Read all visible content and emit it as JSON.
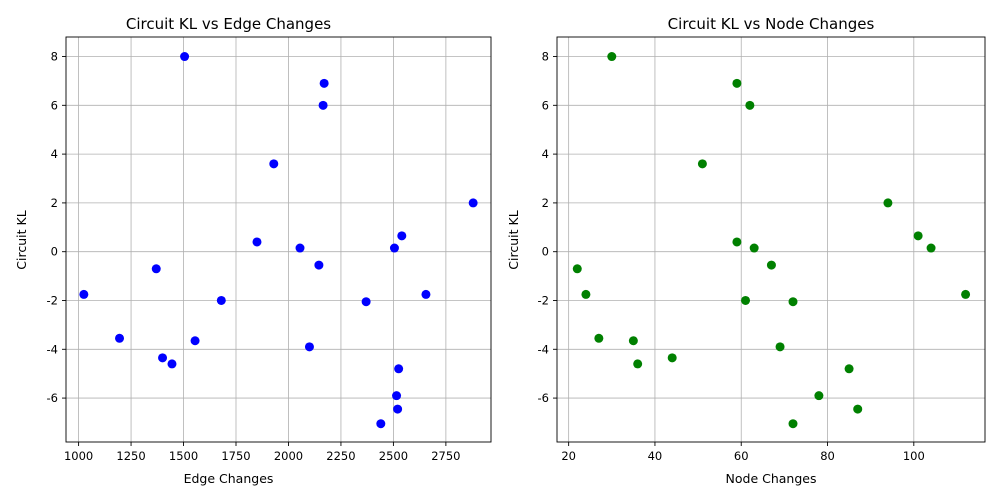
{
  "chart_data": [
    {
      "type": "scatter",
      "title": "Circuit KL vs Edge Changes",
      "xlabel": "Edge Changes",
      "ylabel": "Circuit KL",
      "xlim": [
        940,
        2965
      ],
      "ylim": [
        -7.8,
        8.8
      ],
      "xticks": [
        1000,
        1250,
        1500,
        1750,
        2000,
        2250,
        2500,
        2750
      ],
      "yticks": [
        -6,
        -4,
        -2,
        0,
        2,
        4,
        6,
        8
      ],
      "grid": true,
      "color": "#0000ff",
      "points": [
        {
          "x": 1505,
          "y": 8.0
        },
        {
          "x": 2170,
          "y": 6.9
        },
        {
          "x": 2165,
          "y": 6.0
        },
        {
          "x": 1930,
          "y": 3.6
        },
        {
          "x": 2880,
          "y": 2.0
        },
        {
          "x": 1850,
          "y": 0.4
        },
        {
          "x": 2540,
          "y": 0.65
        },
        {
          "x": 2055,
          "y": 0.15
        },
        {
          "x": 2505,
          "y": 0.15
        },
        {
          "x": 2145,
          "y": -0.55
        },
        {
          "x": 1370,
          "y": -0.7
        },
        {
          "x": 1025,
          "y": -1.75
        },
        {
          "x": 2655,
          "y": -1.75
        },
        {
          "x": 1680,
          "y": -2.0
        },
        {
          "x": 2370,
          "y": -2.05
        },
        {
          "x": 1195,
          "y": -3.55
        },
        {
          "x": 1555,
          "y": -3.65
        },
        {
          "x": 2100,
          "y": -3.9
        },
        {
          "x": 1400,
          "y": -4.35
        },
        {
          "x": 1445,
          "y": -4.6
        },
        {
          "x": 2525,
          "y": -4.8
        },
        {
          "x": 2515,
          "y": -5.9
        },
        {
          "x": 2520,
          "y": -6.45
        },
        {
          "x": 2440,
          "y": -7.05
        }
      ]
    },
    {
      "type": "scatter",
      "title": "Circuit KL vs Node Changes",
      "xlabel": "Node Changes",
      "ylabel": "Circuit KL",
      "xlim": [
        17.3,
        116.5
      ],
      "ylim": [
        -7.8,
        8.8
      ],
      "xticks": [
        20,
        40,
        60,
        80,
        100
      ],
      "yticks": [
        -6,
        -4,
        -2,
        0,
        2,
        4,
        6,
        8
      ],
      "grid": true,
      "color": "#008000",
      "points": [
        {
          "x": 30,
          "y": 8.0
        },
        {
          "x": 59,
          "y": 6.9
        },
        {
          "x": 62,
          "y": 6.0
        },
        {
          "x": 51,
          "y": 3.6
        },
        {
          "x": 94,
          "y": 2.0
        },
        {
          "x": 59,
          "y": 0.4
        },
        {
          "x": 101,
          "y": 0.65
        },
        {
          "x": 63,
          "y": 0.15
        },
        {
          "x": 104,
          "y": 0.15
        },
        {
          "x": 67,
          "y": -0.55
        },
        {
          "x": 22,
          "y": -0.7
        },
        {
          "x": 24,
          "y": -1.75
        },
        {
          "x": 112,
          "y": -1.75
        },
        {
          "x": 61,
          "y": -2.0
        },
        {
          "x": 72,
          "y": -2.05
        },
        {
          "x": 27,
          "y": -3.55
        },
        {
          "x": 35,
          "y": -3.65
        },
        {
          "x": 69,
          "y": -3.9
        },
        {
          "x": 44,
          "y": -4.35
        },
        {
          "x": 36,
          "y": -4.6
        },
        {
          "x": 85,
          "y": -4.8
        },
        {
          "x": 78,
          "y": -5.9
        },
        {
          "x": 87,
          "y": -6.45
        },
        {
          "x": 72,
          "y": -7.05
        }
      ]
    }
  ]
}
